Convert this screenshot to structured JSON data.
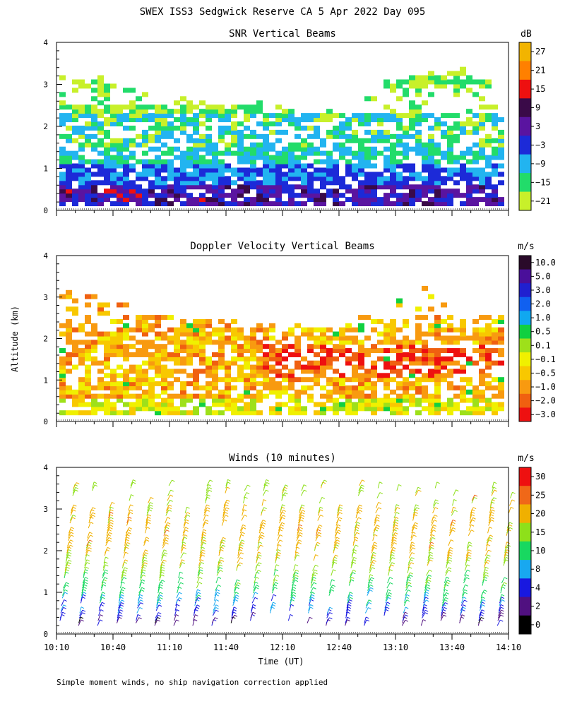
{
  "figure": {
    "title": "SWEX ISS3 Sedgwick Reserve CA   5 Apr 2022 Day 095",
    "footnote": "Simple moment winds, no ship navigation correction applied",
    "ylabel_shared": "Altitude (km)",
    "xlabel": "Time (UT)"
  },
  "chart_data": [
    {
      "type": "heatmap",
      "title": "SNR Vertical Beams",
      "x_ticks": [
        "10:10",
        "10:40",
        "11:10",
        "11:40",
        "12:10",
        "12:40",
        "13:10",
        "13:40",
        "14:10"
      ],
      "y_ticks": [
        "0",
        "1",
        "2",
        "3",
        "4"
      ],
      "ylim": [
        0,
        4
      ],
      "colorbar": {
        "unit": "dB",
        "labels": [
          "27",
          "21",
          "15",
          "9",
          "3",
          "−3",
          "−9",
          "−15",
          "−21"
        ],
        "colors": [
          "#f2b400",
          "#ff8000",
          "#ee1010",
          "#3a0a48",
          "#5a14a0",
          "#1c2ad8",
          "#22b4f0",
          "#22dc6a",
          "#c8f02a"
        ]
      },
      "time_start": "10:10",
      "time_end": "14:10",
      "data_top_km": [
        3.2,
        3.1,
        2.8,
        2.6,
        2.5,
        2.5,
        2.3,
        2.4,
        3.0,
        3.2,
        3.3,
        2.8
      ],
      "layers_from_ground": [
        {
          "top_km": 0.6,
          "dominant_dB": "3"
        },
        {
          "top_km": 1.4,
          "dominant_dB": "−3"
        },
        {
          "top_km": 2.2,
          "dominant_dB": "−9"
        },
        {
          "top_km": 3.2,
          "dominant_dB": "−15 to −21"
        }
      ]
    },
    {
      "type": "heatmap",
      "title": "Doppler Velocity Vertical Beams",
      "x_ticks": [
        "10:10",
        "10:40",
        "11:10",
        "11:40",
        "12:10",
        "12:40",
        "13:10",
        "13:40",
        "14:10"
      ],
      "y_ticks": [
        "0",
        "1",
        "2",
        "3",
        "4"
      ],
      "ylim": [
        0,
        4
      ],
      "colorbar": {
        "unit": "m/s",
        "labels": [
          "10.0",
          "5.0",
          "3.0",
          "2.0",
          "1.0",
          "0.5",
          "0.1",
          "−0.1",
          "−0.5",
          "−1.0",
          "−2.0",
          "−3.0"
        ],
        "colors": [
          "#2a0a2a",
          "#4a0f9a",
          "#2020d0",
          "#1060f0",
          "#10a8f0",
          "#10d040",
          "#9ee01a",
          "#f0f000",
          "#f8c800",
          "#f89a10",
          "#f06010",
          "#ee1010"
        ]
      },
      "time_start": "10:10",
      "time_end": "14:10",
      "data_top_km": [
        3.1,
        2.9,
        2.6,
        2.5,
        2.4,
        2.3,
        2.2,
        2.3,
        2.7,
        3.1,
        3.0,
        2.8
      ],
      "dominant_m_per_s": [
        "−0.1",
        "−0.5",
        "−1.0",
        "−2.0"
      ]
    },
    {
      "type": "wind_barbs",
      "title": "Winds (10 minutes)",
      "x_ticks": [
        "10:10",
        "10:40",
        "11:10",
        "11:40",
        "12:10",
        "12:40",
        "13:10",
        "13:40",
        "14:10"
      ],
      "y_ticks": [
        "0",
        "1",
        "2",
        "3",
        "4"
      ],
      "ylim": [
        0,
        4
      ],
      "colorbar": {
        "unit": "m/s",
        "labels": [
          "30",
          "25",
          "20",
          "15",
          "10",
          "8",
          "4",
          "2",
          "0"
        ],
        "colors": [
          "#ee1010",
          "#f06818",
          "#f0b000",
          "#8ee01a",
          "#18d860",
          "#18a8f0",
          "#1818e0",
          "#501080",
          "#000000"
        ]
      },
      "time_start": "10:10",
      "time_end": "14:10",
      "profile_interval_min": 10,
      "profiles": 24,
      "speed_by_height_m_per_s": [
        {
          "height_km": 0.3,
          "speed": 4
        },
        {
          "height_km": 0.7,
          "speed": 9
        },
        {
          "height_km": 1.2,
          "speed": 14
        },
        {
          "height_km": 1.6,
          "speed": 19
        },
        {
          "height_km": 2.2,
          "speed": 22
        },
        {
          "height_km": 2.8,
          "speed": 22
        },
        {
          "height_km": 3.3,
          "speed": 18
        }
      ]
    }
  ]
}
